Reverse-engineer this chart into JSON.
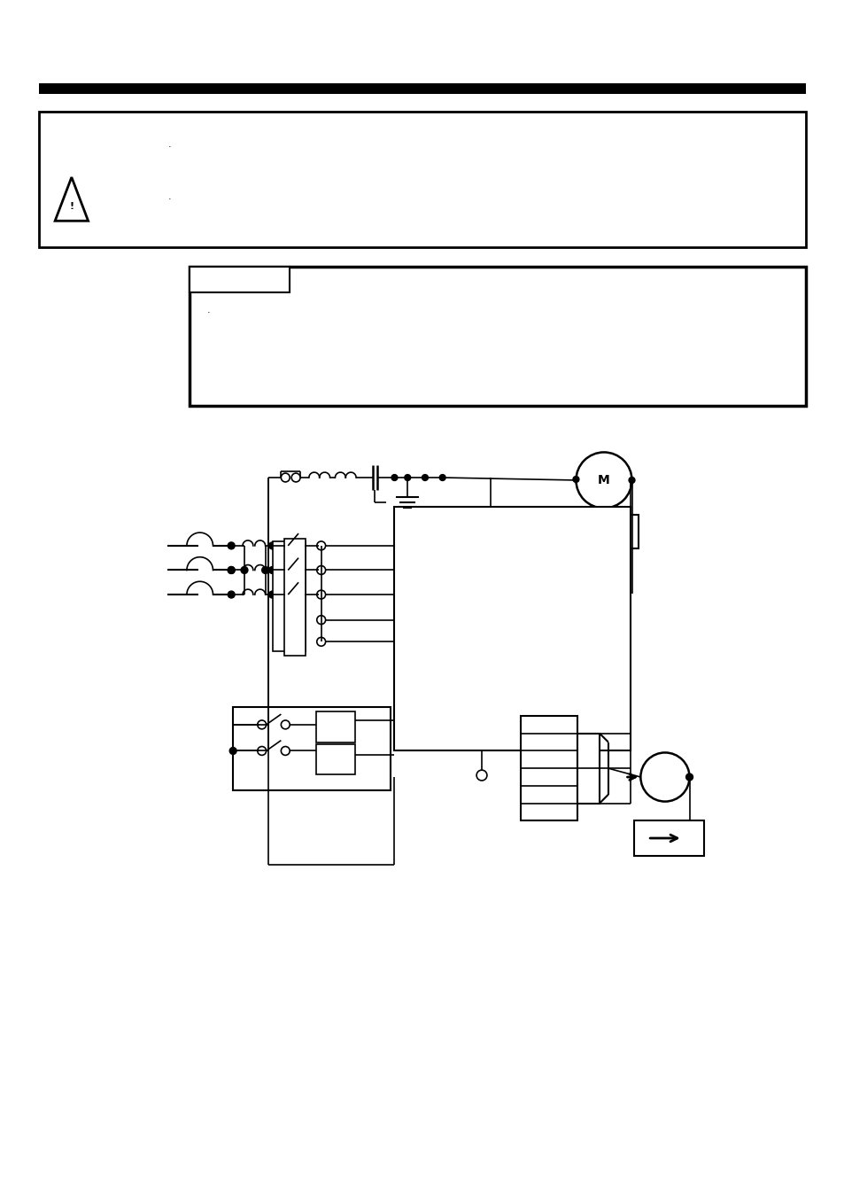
{
  "bg_color": "#ffffff",
  "page_width": 9.54,
  "page_height": 13.51,
  "dpi": 100
}
